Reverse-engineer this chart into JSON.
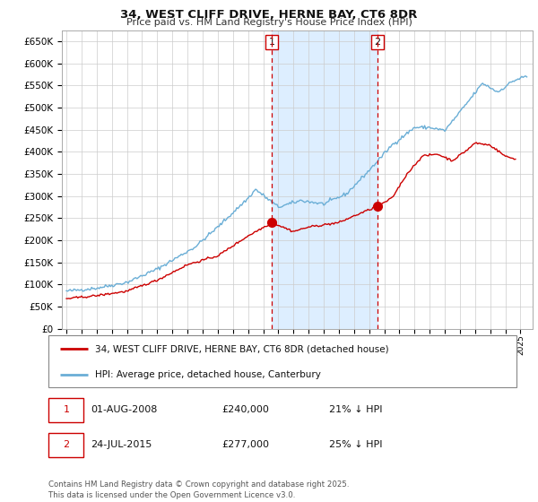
{
  "title": "34, WEST CLIFF DRIVE, HERNE BAY, CT6 8DR",
  "subtitle": "Price paid vs. HM Land Registry's House Price Index (HPI)",
  "legend_line1": "34, WEST CLIFF DRIVE, HERNE BAY, CT6 8DR (detached house)",
  "legend_line2": "HPI: Average price, detached house, Canterbury",
  "footnote": "Contains HM Land Registry data © Crown copyright and database right 2025.\nThis data is licensed under the Open Government Licence v3.0.",
  "marker1_date": "01-AUG-2008",
  "marker1_price": "£240,000",
  "marker1_hpi": "21% ↓ HPI",
  "marker2_date": "24-JUL-2015",
  "marker2_price": "£277,000",
  "marker2_hpi": "25% ↓ HPI",
  "hpi_color": "#6aaed6",
  "price_color": "#cc0000",
  "shade_color": "#ddeeff",
  "vline_color": "#cc0000",
  "ylim": [
    0,
    675000
  ],
  "yticks": [
    0,
    50000,
    100000,
    150000,
    200000,
    250000,
    300000,
    350000,
    400000,
    450000,
    500000,
    550000,
    600000,
    650000
  ],
  "marker1_x": 2008.58,
  "marker2_x": 2015.56,
  "hpi_anchors_t": [
    1995.0,
    1997.0,
    1999.0,
    2001.0,
    2003.5,
    2005.0,
    2007.0,
    2007.5,
    2009.0,
    2010.5,
    2012.0,
    2013.5,
    2015.0,
    2016.5,
    2018.0,
    2019.0,
    2020.0,
    2021.0,
    2022.5,
    2023.5,
    2024.5,
    2025.3
  ],
  "hpi_anchors_p": [
    85000,
    92000,
    105000,
    135000,
    185000,
    230000,
    295000,
    315000,
    275000,
    290000,
    282000,
    305000,
    358000,
    415000,
    455000,
    455000,
    448000,
    490000,
    555000,
    535000,
    560000,
    570000
  ],
  "price_anchors_t": [
    1995.0,
    1997.0,
    1999.0,
    2001.0,
    2003.0,
    2005.0,
    2007.0,
    2008.58,
    2010.0,
    2011.0,
    2012.0,
    2013.0,
    2014.0,
    2015.56,
    2016.5,
    2017.5,
    2018.5,
    2019.5,
    2020.5,
    2021.5,
    2022.0,
    2023.0,
    2024.0,
    2024.5
  ],
  "price_anchors_p": [
    68000,
    75000,
    85000,
    110000,
    145000,
    165000,
    210000,
    240000,
    220000,
    230000,
    235000,
    240000,
    255000,
    277000,
    295000,
    350000,
    390000,
    395000,
    380000,
    405000,
    420000,
    415000,
    390000,
    385000
  ]
}
